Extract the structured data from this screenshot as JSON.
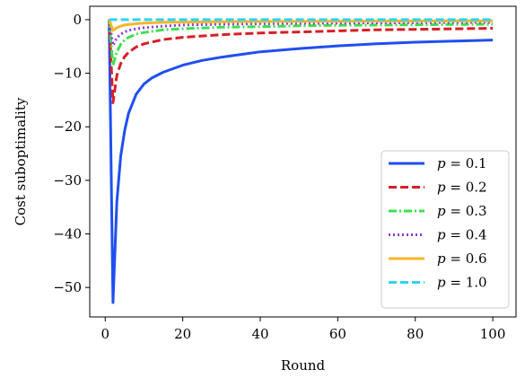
{
  "chart_data": {
    "type": "line",
    "title": "",
    "xlabel": "Round",
    "ylabel": "Cost suboptimality",
    "xlim": [
      -4,
      106
    ],
    "ylim": [
      -55.5,
      2.5
    ],
    "xticks": [
      0,
      20,
      40,
      60,
      80,
      100
    ],
    "yticks": [
      0,
      -10,
      -20,
      -30,
      -40,
      -50
    ],
    "grid": false,
    "legend": {
      "position": "bottom-right"
    },
    "series": [
      {
        "name": "p = 0.1",
        "p": "0.1",
        "color": "#1f4ff0",
        "dash": "solid",
        "x": [
          1,
          2,
          3,
          4,
          5,
          6,
          8,
          10,
          12,
          15,
          20,
          25,
          30,
          40,
          50,
          60,
          70,
          80,
          90,
          100
        ],
        "y": [
          0,
          -52.8,
          -34.0,
          -25.5,
          -20.7,
          -17.5,
          -13.9,
          -12.0,
          -10.9,
          -9.8,
          -8.5,
          -7.6,
          -7.0,
          -6.0,
          -5.4,
          -4.9,
          -4.5,
          -4.2,
          -4.0,
          -3.8
        ]
      },
      {
        "name": "p = 0.2",
        "p": "0.2",
        "color": "#d61f26",
        "dash": "dashed",
        "x": [
          1,
          2,
          3,
          4,
          5,
          6,
          8,
          10,
          15,
          20,
          30,
          40,
          50,
          60,
          70,
          80,
          90,
          100
        ],
        "y": [
          0,
          -15.5,
          -10.4,
          -8.2,
          -6.9,
          -6.1,
          -5.1,
          -4.5,
          -3.7,
          -3.3,
          -2.8,
          -2.5,
          -2.3,
          -2.1,
          -1.9,
          -1.8,
          -1.7,
          -1.6
        ]
      },
      {
        "name": "p = 0.3",
        "p": "0.3",
        "color": "#3ee04e",
        "dash": "dashdot",
        "x": [
          1,
          2,
          3,
          4,
          5,
          6,
          8,
          10,
          15,
          20,
          30,
          40,
          50,
          60,
          70,
          80,
          90,
          100
        ],
        "y": [
          0,
          -8.5,
          -6.0,
          -4.6,
          -3.8,
          -3.3,
          -2.7,
          -2.4,
          -1.9,
          -1.7,
          -1.4,
          -1.3,
          -1.15,
          -1.05,
          -1.0,
          -0.95,
          -0.9,
          -0.85
        ]
      },
      {
        "name": "p = 0.4",
        "p": "0.4",
        "color": "#8a3fdb",
        "dash": "dotted",
        "x": [
          1,
          2,
          3,
          4,
          5,
          6,
          8,
          10,
          15,
          20,
          30,
          40,
          50,
          60,
          70,
          80,
          90,
          100
        ],
        "y": [
          0,
          -4.8,
          -3.4,
          -2.7,
          -2.3,
          -2.0,
          -1.7,
          -1.5,
          -1.2,
          -1.0,
          -0.85,
          -0.75,
          -0.7,
          -0.65,
          -0.6,
          -0.55,
          -0.5,
          -0.5
        ]
      },
      {
        "name": "p = 0.6",
        "p": "0.6",
        "color": "#f8b52a",
        "dash": "solid",
        "x": [
          1,
          2,
          3,
          4,
          5,
          6,
          8,
          10,
          15,
          20,
          30,
          40,
          50,
          60,
          70,
          80,
          90,
          100
        ],
        "y": [
          0,
          -2.0,
          -1.5,
          -1.2,
          -1.0,
          -0.9,
          -0.75,
          -0.65,
          -0.5,
          -0.45,
          -0.38,
          -0.33,
          -0.3,
          -0.28,
          -0.26,
          -0.25,
          -0.24,
          -0.23
        ]
      },
      {
        "name": "p = 1.0",
        "p": "1.0",
        "color": "#2bd4f0",
        "dash": "dashed",
        "x": [
          1,
          10,
          20,
          40,
          60,
          80,
          100
        ],
        "y": [
          0,
          0,
          0,
          0,
          0,
          0,
          0
        ]
      }
    ]
  }
}
